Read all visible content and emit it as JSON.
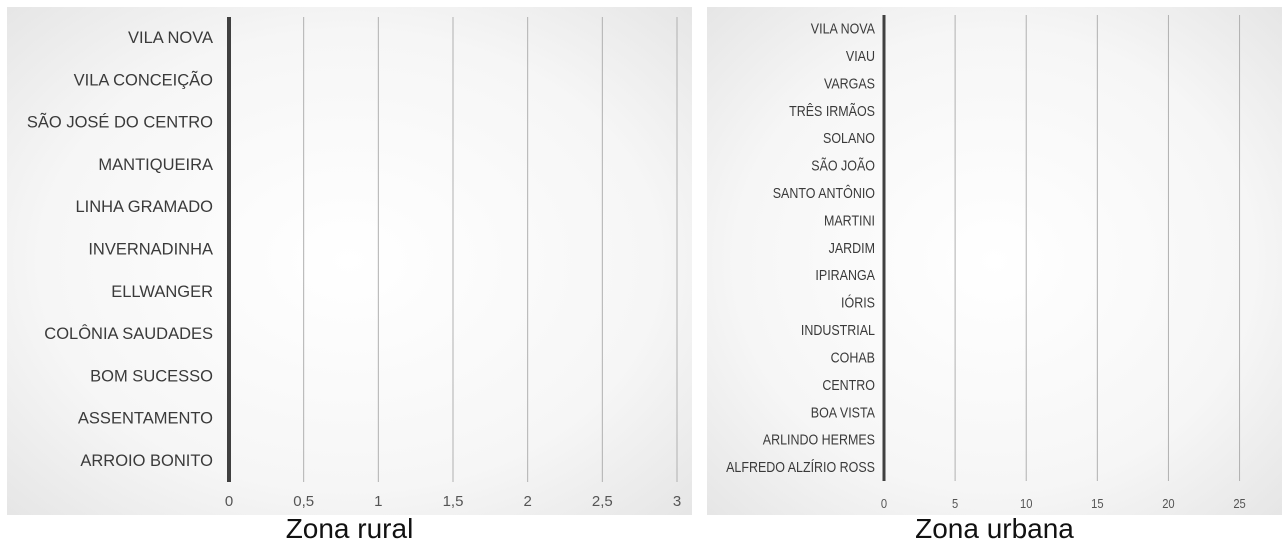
{
  "colors": {
    "panel_bg_center": "#ffffff",
    "panel_bg_edge": "#e4e4e4",
    "axis_line": "#404040",
    "gridline": "#b0b0b0",
    "label": "#3a3a3a"
  },
  "chart_data": [
    {
      "type": "bar",
      "orientation": "horizontal",
      "caption": "Zona rural",
      "categories": [
        "VILA NOVA",
        "VILA CONCEIÇÃO",
        "SÃO JOSÉ DO CENTRO",
        "MANTIQUEIRA",
        "LINHA GRAMADO",
        "INVERNADINHA",
        "ELLWANGER",
        "COLÔNIA SAUDADES",
        "BOM SUCESSO",
        "ASSENTAMENTO",
        "ARROIO BONITO"
      ],
      "values": [
        0,
        0,
        0,
        0,
        0,
        0,
        0,
        0,
        0,
        0,
        0
      ],
      "xticks": [
        "0",
        "0,5",
        "1",
        "1,5",
        "2",
        "2,5",
        "3"
      ],
      "xlim": [
        0,
        3
      ],
      "grid": true,
      "legend": "none"
    },
    {
      "type": "bar",
      "orientation": "horizontal",
      "caption": "Zona urbana",
      "categories": [
        "VILA NOVA",
        "VIAU",
        "VARGAS",
        "TRÊS IRMÃOS",
        "SOLANO",
        "SÃO JOÃO",
        "SANTO ANTÔNIO",
        "MARTINI",
        "JARDIM",
        "IPIRANGA",
        "IÓRIS",
        "INDUSTRIAL",
        "COHAB",
        "CENTRO",
        "BOA VISTA",
        "ARLINDO HERMES",
        "ALFREDO ALZÍRIO ROSS"
      ],
      "values": [
        0,
        0,
        0,
        0,
        0,
        0,
        0,
        0,
        0,
        0,
        0,
        0,
        0,
        0,
        0,
        0,
        0
      ],
      "xticks": [
        "0",
        "5",
        "10",
        "15",
        "20",
        "25"
      ],
      "xlim": [
        0,
        27
      ],
      "grid": true,
      "legend": "none"
    }
  ]
}
